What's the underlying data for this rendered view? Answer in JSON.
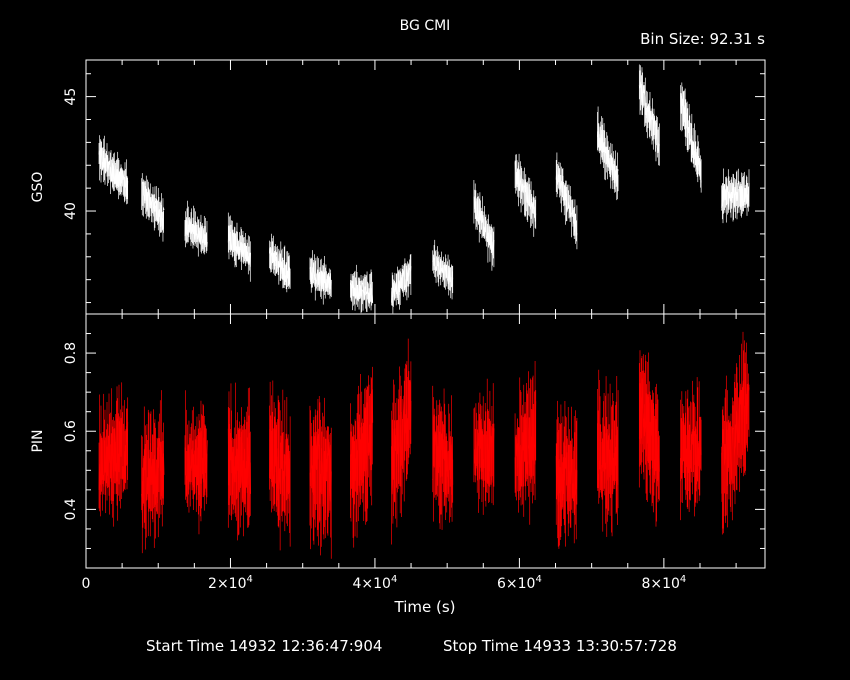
{
  "chart_data": {
    "title": "BG CMI",
    "subtitle": "Bin Size: 92.31 s",
    "xlabel": "Time (s)",
    "footer": {
      "start": "Start Time 14932 12:36:47:904",
      "stop": "Stop Time 14933 13:30:57:728"
    },
    "x_range": [
      0,
      94000
    ],
    "x_ticks": [
      {
        "value": 0,
        "mant": "0",
        "exp": ""
      },
      {
        "value": 20000,
        "mant": "2×10",
        "exp": "4"
      },
      {
        "value": 40000,
        "mant": "4×10",
        "exp": "4"
      },
      {
        "value": 60000,
        "mant": "6×10",
        "exp": "4"
      },
      {
        "value": 80000,
        "mant": "8×10",
        "exp": "4"
      }
    ],
    "panels": [
      {
        "name": "gso",
        "type": "line",
        "ylabel": "GSO",
        "color": "#ffffff",
        "ylim": [
          35.5,
          46.6
        ],
        "yticks": [
          40,
          45
        ],
        "segments": [
          {
            "t0": 1800,
            "t1": 5800,
            "y0": 42.4,
            "y1": 41.0,
            "amp": 0.55,
            "seed": 1
          },
          {
            "t0": 7700,
            "t1": 10800,
            "y0": 40.9,
            "y1": 39.6,
            "amp": 0.55,
            "seed": 2
          },
          {
            "t0": 13700,
            "t1": 16800,
            "y0": 39.4,
            "y1": 38.8,
            "amp": 0.5,
            "seed": 3
          },
          {
            "t0": 19700,
            "t1": 22800,
            "y0": 38.9,
            "y1": 37.9,
            "amp": 0.5,
            "seed": 4
          },
          {
            "t0": 25400,
            "t1": 28300,
            "y0": 38.2,
            "y1": 37.1,
            "amp": 0.5,
            "seed": 5
          },
          {
            "t0": 31000,
            "t1": 34000,
            "y0": 37.3,
            "y1": 36.8,
            "amp": 0.5,
            "seed": 6
          },
          {
            "t0": 36600,
            "t1": 39700,
            "y0": 36.6,
            "y1": 36.4,
            "amp": 0.5,
            "seed": 7
          },
          {
            "t0": 42300,
            "t1": 45000,
            "y0": 36.4,
            "y1": 37.3,
            "amp": 0.5,
            "seed": 8
          },
          {
            "t0": 48000,
            "t1": 50800,
            "y0": 37.8,
            "y1": 37.0,
            "amp": 0.45,
            "seed": 9
          },
          {
            "t0": 53700,
            "t1": 56500,
            "y0": 40.4,
            "y1": 38.3,
            "amp": 0.55,
            "seed": 10
          },
          {
            "t0": 59400,
            "t1": 62300,
            "y0": 41.7,
            "y1": 39.8,
            "amp": 0.6,
            "seed": 11
          },
          {
            "t0": 65100,
            "t1": 68000,
            "y0": 41.8,
            "y1": 39.2,
            "amp": 0.6,
            "seed": 12
          },
          {
            "t0": 70800,
            "t1": 73700,
            "y0": 43.4,
            "y1": 41.2,
            "amp": 0.6,
            "seed": 13
          },
          {
            "t0": 76600,
            "t1": 79400,
            "y0": 45.4,
            "y1": 42.9,
            "amp": 0.6,
            "seed": 14
          },
          {
            "t0": 82300,
            "t1": 85200,
            "y0": 44.8,
            "y1": 41.6,
            "amp": 0.6,
            "seed": 15
          },
          {
            "t0": 88000,
            "t1": 91800,
            "y0": 40.6,
            "y1": 40.8,
            "amp": 0.6,
            "seed": 16
          }
        ]
      },
      {
        "name": "pin",
        "type": "line",
        "ylabel": "PIN",
        "color": "#ff0000",
        "ylim": [
          0.25,
          0.9
        ],
        "yticks": [
          0.4,
          0.6,
          0.8
        ],
        "segments": [
          {
            "t0": 1800,
            "t1": 5800,
            "y0": 0.52,
            "y1": 0.56,
            "amp": 0.09,
            "seed": 21
          },
          {
            "t0": 7700,
            "t1": 10800,
            "y0": 0.47,
            "y1": 0.52,
            "amp": 0.09,
            "seed": 22
          },
          {
            "t0": 13700,
            "t1": 16800,
            "y0": 0.52,
            "y1": 0.53,
            "amp": 0.09,
            "seed": 23
          },
          {
            "t0": 19700,
            "t1": 22800,
            "y0": 0.52,
            "y1": 0.5,
            "amp": 0.1,
            "seed": 24
          },
          {
            "t0": 25400,
            "t1": 28300,
            "y0": 0.55,
            "y1": 0.48,
            "amp": 0.1,
            "seed": 25
          },
          {
            "t0": 31000,
            "t1": 34000,
            "y0": 0.52,
            "y1": 0.48,
            "amp": 0.1,
            "seed": 26
          },
          {
            "t0": 36600,
            "t1": 39700,
            "y0": 0.48,
            "y1": 0.62,
            "amp": 0.1,
            "seed": 27
          },
          {
            "t0": 42300,
            "t1": 45000,
            "y0": 0.5,
            "y1": 0.68,
            "amp": 0.1,
            "seed": 28
          },
          {
            "t0": 48000,
            "t1": 50800,
            "y0": 0.56,
            "y1": 0.5,
            "amp": 0.09,
            "seed": 29
          },
          {
            "t0": 53700,
            "t1": 56500,
            "y0": 0.55,
            "y1": 0.55,
            "amp": 0.09,
            "seed": 30
          },
          {
            "t0": 59400,
            "t1": 62300,
            "y0": 0.54,
            "y1": 0.58,
            "amp": 0.1,
            "seed": 31
          },
          {
            "t0": 65100,
            "t1": 68000,
            "y0": 0.5,
            "y1": 0.48,
            "amp": 0.1,
            "seed": 32
          },
          {
            "t0": 70800,
            "t1": 73700,
            "y0": 0.54,
            "y1": 0.52,
            "amp": 0.1,
            "seed": 33
          },
          {
            "t0": 76600,
            "t1": 79400,
            "y0": 0.66,
            "y1": 0.54,
            "amp": 0.1,
            "seed": 34
          },
          {
            "t0": 82300,
            "t1": 85200,
            "y0": 0.56,
            "y1": 0.55,
            "amp": 0.09,
            "seed": 35
          },
          {
            "t0": 88000,
            "t1": 91800,
            "y0": 0.5,
            "y1": 0.68,
            "amp": 0.1,
            "seed": 36
          }
        ]
      }
    ]
  }
}
